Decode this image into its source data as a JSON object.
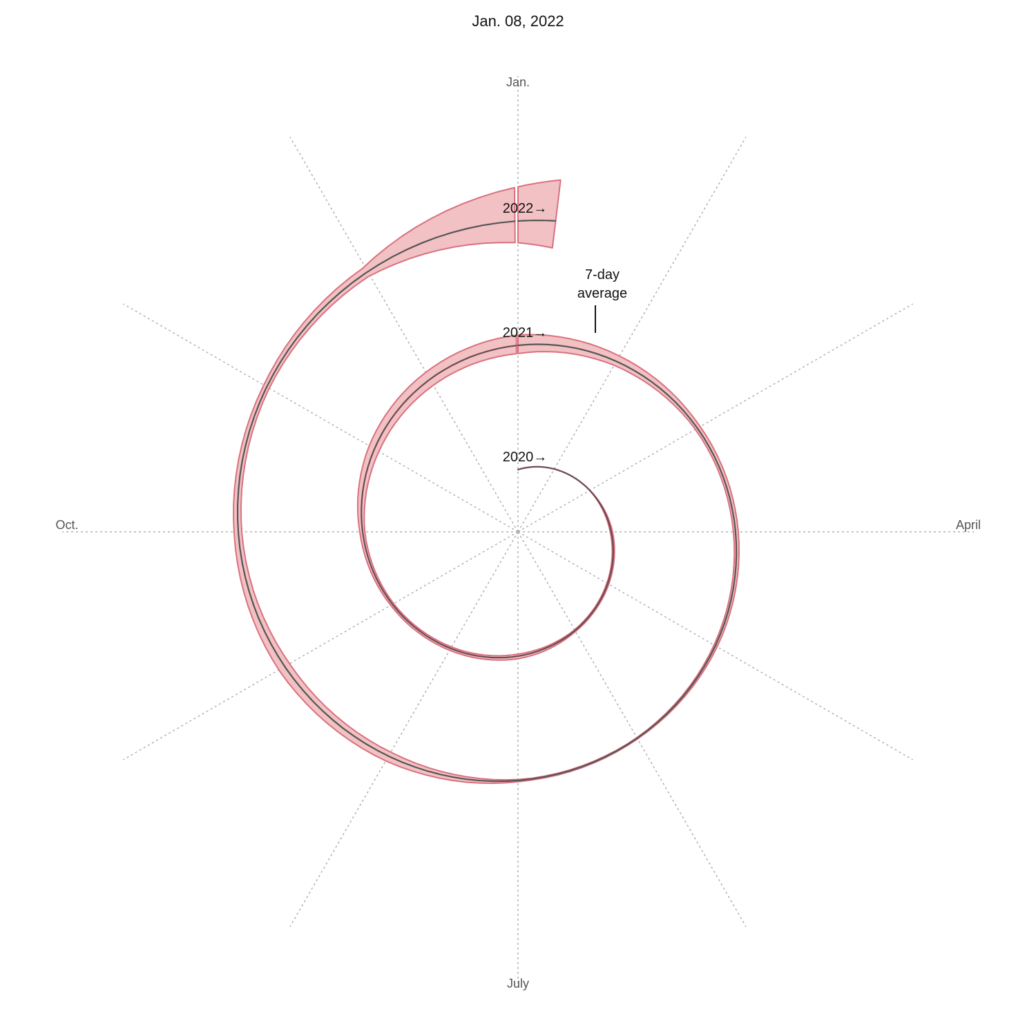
{
  "title": "Jan. 08, 2022",
  "colors": {
    "band_fill": "#f2c1c3",
    "band_stroke": "#d9707e",
    "average_line_2020": "#6b4a52",
    "average_line": "#555555",
    "spoke": "#b0b0b0"
  },
  "chart_data": {
    "type": "area",
    "layout": "polar spiral, one revolution per year, clockwise from Jan. at top",
    "grid": true,
    "angular_axis": {
      "labels": [
        "Jan.",
        "April",
        "July",
        "Oct."
      ],
      "divisions": 12
    },
    "annotations": [
      {
        "text": "7-day",
        "text2": "average"
      },
      {
        "text": "2020→"
      },
      {
        "text": "2021→"
      },
      {
        "text": "2022→"
      }
    ],
    "series": [
      {
        "name": "2020",
        "dates": [
          "2020-01-01",
          "2020-02-01",
          "2020-03-01",
          "2020-04-01",
          "2020-05-01",
          "2020-06-01",
          "2020-07-01",
          "2020-08-01",
          "2020-09-01",
          "2020-10-01",
          "2020-11-01",
          "2020-12-01"
        ],
        "average": [
          0,
          0,
          2,
          30,
          27,
          20,
          55,
          50,
          38,
          60,
          150,
          200
        ],
        "daily_high": [
          0,
          0,
          3,
          38,
          35,
          30,
          75,
          62,
          55,
          80,
          180,
          240
        ]
      },
      {
        "name": "2021",
        "dates": [
          "2021-01-01",
          "2021-02-01",
          "2021-03-01",
          "2021-04-01",
          "2021-05-01",
          "2021-06-01",
          "2021-07-01",
          "2021-08-01",
          "2021-09-01",
          "2021-10-01",
          "2021-11-01",
          "2021-12-01"
        ],
        "average": [
          230,
          120,
          65,
          62,
          45,
          15,
          20,
          130,
          160,
          100,
          80,
          120
        ],
        "daily_high": [
          300,
          170,
          90,
          80,
          60,
          22,
          30,
          160,
          200,
          125,
          100,
          160
        ]
      },
      {
        "name": "2022",
        "dates": [
          "2022-01-01",
          "2022-01-08"
        ],
        "average": [
          500,
          650
        ],
        "daily_high": [
          900,
          1100
        ]
      }
    ]
  }
}
